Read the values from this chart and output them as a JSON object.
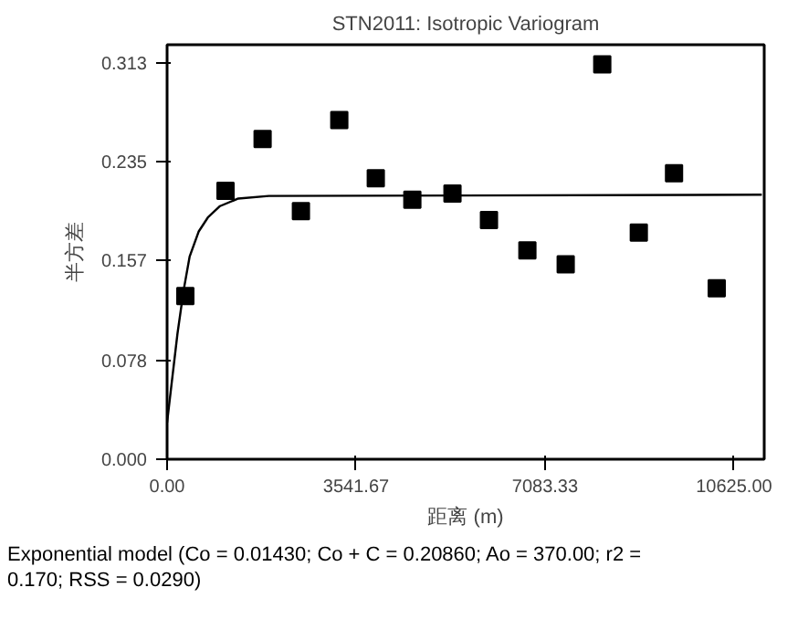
{
  "chart_data": {
    "type": "scatter",
    "title": "STN2011: Isotropic Variogram",
    "xlabel": "距离 (m)",
    "ylabel": "半方差",
    "annotations": [
      "Exponential model (Co = 0.01430; Co + C = 0.20860; Ao = 370.00; r2 = 0.170; RSS = 0.0290)"
    ],
    "xlim": [
      0,
      11190
    ],
    "ylim": [
      0,
      0.3275
    ],
    "xticks": [
      {
        "value": 0,
        "label": "0.00"
      },
      {
        "value": 3541.67,
        "label": "3541.67"
      },
      {
        "value": 7083.33,
        "label": "7083.33"
      },
      {
        "value": 10625,
        "label": "10625.00"
      }
    ],
    "yticks": [
      {
        "value": 0,
        "label": "0.000"
      },
      {
        "value": 0.078,
        "label": "0.078"
      },
      {
        "value": 0.157,
        "label": "0.157"
      },
      {
        "value": 0.235,
        "label": "0.235"
      },
      {
        "value": 0.313,
        "label": "0.313"
      }
    ],
    "grid": false,
    "series": [
      {
        "marker": "square",
        "color": "#000000",
        "x": [
          342,
          1095,
          1790,
          2508,
          3227,
          3911,
          4596,
          5348,
          6032,
          6752,
          7470,
          8155,
          8840,
          9500,
          10300
        ],
        "values": [
          0.129,
          0.212,
          0.253,
          0.196,
          0.268,
          0.222,
          0.205,
          0.21,
          0.189,
          0.165,
          0.154,
          0.312,
          0.179,
          0.226,
          0.135
        ]
      },
      {
        "type": "line",
        "marker": "none",
        "line_style": "solid",
        "color": "#000000",
        "x": [
          0,
          80,
          194,
          308,
          422,
          593,
          764,
          992,
          1335,
          1906,
          11145
        ],
        "values": [
          0.029,
          0.058,
          0.099,
          0.133,
          0.16,
          0.18,
          0.191,
          0.2,
          0.206,
          0.208,
          0.209
        ]
      }
    ]
  }
}
